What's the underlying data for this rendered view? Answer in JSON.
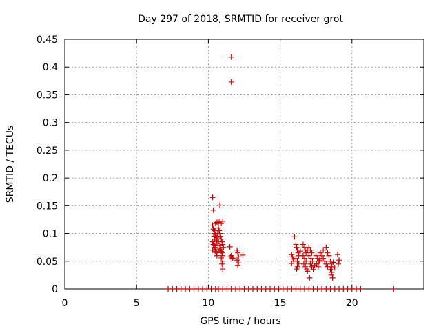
{
  "chart_data": {
    "type": "scatter",
    "title": "Day 297 of 2018, SRMTID for receiver grot",
    "xlabel": "GPS time / hours",
    "ylabel": "SRMTID / TECUs",
    "xlim": [
      0,
      25
    ],
    "ylim": [
      0,
      0.45
    ],
    "xticks": [
      "0",
      "5",
      "10",
      "15",
      "20"
    ],
    "yticks": [
      "0",
      "0.05",
      "0.1",
      "0.15",
      "0.2",
      "0.25",
      "0.3",
      "0.35",
      "0.4",
      "0.45"
    ],
    "grid": true,
    "marker": "plus",
    "color": "#cc0000",
    "series": [
      {
        "points": [
          [
            10.3,
            0.165
          ],
          [
            10.35,
            0.142
          ],
          [
            11.6,
            0.418
          ],
          [
            11.6,
            0.373
          ],
          [
            10.8,
            0.151
          ],
          [
            10.3,
            0.115
          ],
          [
            10.35,
            0.108
          ],
          [
            10.4,
            0.1
          ],
          [
            10.4,
            0.095
          ],
          [
            10.45,
            0.09
          ],
          [
            10.3,
            0.085
          ],
          [
            10.35,
            0.08
          ],
          [
            10.4,
            0.078
          ],
          [
            10.45,
            0.075
          ],
          [
            10.5,
            0.072
          ],
          [
            10.3,
            0.07
          ],
          [
            10.5,
            0.068
          ],
          [
            10.55,
            0.065
          ],
          [
            10.6,
            0.06
          ],
          [
            10.6,
            0.12
          ],
          [
            10.5,
            0.118
          ],
          [
            10.7,
            0.12
          ],
          [
            10.8,
            0.122
          ],
          [
            10.9,
            0.118
          ],
          [
            11.0,
            0.122
          ],
          [
            10.7,
            0.11
          ],
          [
            10.75,
            0.105
          ],
          [
            10.8,
            0.1
          ],
          [
            10.85,
            0.095
          ],
          [
            10.9,
            0.09
          ],
          [
            10.95,
            0.085
          ],
          [
            11.0,
            0.08
          ],
          [
            10.8,
            0.078
          ],
          [
            10.85,
            0.072
          ],
          [
            10.9,
            0.068
          ],
          [
            10.95,
            0.065
          ],
          [
            11.0,
            0.06
          ],
          [
            10.9,
            0.056
          ],
          [
            11.0,
            0.05
          ],
          [
            10.95,
            0.045
          ],
          [
            11.0,
            0.036
          ],
          [
            11.05,
            0.075
          ],
          [
            10.6,
            0.092
          ],
          [
            10.55,
            0.088
          ],
          [
            10.65,
            0.1
          ],
          [
            10.45,
            0.105
          ],
          [
            10.5,
            0.097
          ],
          [
            10.6,
            0.082
          ],
          [
            10.7,
            0.085
          ],
          [
            10.75,
            0.07
          ],
          [
            11.5,
            0.076
          ],
          [
            11.55,
            0.058
          ],
          [
            11.65,
            0.056
          ],
          [
            11.7,
            0.055
          ],
          [
            11.6,
            0.06
          ],
          [
            12.0,
            0.07
          ],
          [
            12.05,
            0.065
          ],
          [
            12.1,
            0.058
          ],
          [
            12.0,
            0.052
          ],
          [
            12.1,
            0.047
          ],
          [
            12.05,
            0.042
          ],
          [
            12.4,
            0.061
          ],
          [
            15.8,
            0.062
          ],
          [
            15.85,
            0.058
          ],
          [
            15.9,
            0.054
          ],
          [
            15.95,
            0.05
          ],
          [
            15.8,
            0.046
          ],
          [
            16.0,
            0.094
          ],
          [
            16.1,
            0.08
          ],
          [
            16.15,
            0.075
          ],
          [
            16.2,
            0.07
          ],
          [
            16.25,
            0.065
          ],
          [
            16.3,
            0.06
          ],
          [
            16.1,
            0.055
          ],
          [
            16.2,
            0.05
          ],
          [
            16.3,
            0.046
          ],
          [
            16.2,
            0.04
          ],
          [
            16.15,
            0.036
          ],
          [
            16.6,
            0.08
          ],
          [
            16.7,
            0.075
          ],
          [
            16.75,
            0.07
          ],
          [
            16.8,
            0.065
          ],
          [
            16.6,
            0.06
          ],
          [
            16.7,
            0.055
          ],
          [
            16.8,
            0.05
          ],
          [
            16.65,
            0.045
          ],
          [
            16.75,
            0.04
          ],
          [
            16.85,
            0.036
          ],
          [
            16.9,
            0.032
          ],
          [
            17.0,
            0.075
          ],
          [
            17.1,
            0.07
          ],
          [
            17.2,
            0.065
          ],
          [
            17.0,
            0.06
          ],
          [
            17.15,
            0.055
          ],
          [
            17.25,
            0.05
          ],
          [
            17.1,
            0.045
          ],
          [
            17.2,
            0.04
          ],
          [
            17.3,
            0.035
          ],
          [
            17.05,
            0.02
          ],
          [
            17.5,
            0.06
          ],
          [
            17.6,
            0.055
          ],
          [
            17.7,
            0.05
          ],
          [
            17.55,
            0.045
          ],
          [
            17.65,
            0.04
          ],
          [
            17.8,
            0.065
          ],
          [
            17.9,
            0.06
          ],
          [
            18.0,
            0.055
          ],
          [
            18.1,
            0.05
          ],
          [
            18.2,
            0.075
          ],
          [
            18.0,
            0.07
          ],
          [
            18.3,
            0.065
          ],
          [
            18.4,
            0.06
          ],
          [
            18.2,
            0.045
          ],
          [
            18.3,
            0.04
          ],
          [
            18.5,
            0.05
          ],
          [
            18.55,
            0.045
          ],
          [
            18.6,
            0.04
          ],
          [
            18.5,
            0.035
          ],
          [
            18.6,
            0.03
          ],
          [
            18.55,
            0.025
          ],
          [
            18.65,
            0.02
          ],
          [
            18.7,
            0.048
          ],
          [
            19.0,
            0.062
          ],
          [
            19.1,
            0.052
          ],
          [
            19.05,
            0.045
          ],
          [
            16.9,
            0.07
          ],
          [
            17.4,
            0.042
          ],
          [
            18.8,
            0.038
          ],
          [
            16.4,
            0.068
          ],
          [
            17.75,
            0.052
          ],
          [
            7.2,
            0
          ],
          [
            7.5,
            0
          ],
          [
            7.8,
            0
          ],
          [
            8.1,
            0
          ],
          [
            8.4,
            0
          ],
          [
            8.7,
            0
          ],
          [
            9.0,
            0
          ],
          [
            9.3,
            0
          ],
          [
            9.6,
            0
          ],
          [
            9.9,
            0
          ],
          [
            10.2,
            0
          ],
          [
            10.5,
            0
          ],
          [
            10.7,
            0
          ],
          [
            11.0,
            0
          ],
          [
            11.3,
            0
          ],
          [
            11.6,
            0
          ],
          [
            11.9,
            0
          ],
          [
            12.2,
            0
          ],
          [
            12.5,
            0
          ],
          [
            12.8,
            0
          ],
          [
            13.1,
            0
          ],
          [
            13.4,
            0
          ],
          [
            13.7,
            0
          ],
          [
            14.0,
            0
          ],
          [
            14.3,
            0
          ],
          [
            14.6,
            0
          ],
          [
            14.9,
            0
          ],
          [
            15.2,
            0
          ],
          [
            15.5,
            0
          ],
          [
            15.8,
            0
          ],
          [
            16.1,
            0
          ],
          [
            16.4,
            0
          ],
          [
            16.7,
            0
          ],
          [
            17.0,
            0
          ],
          [
            17.3,
            0
          ],
          [
            17.6,
            0
          ],
          [
            17.9,
            0
          ],
          [
            18.2,
            0
          ],
          [
            18.5,
            0
          ],
          [
            18.8,
            0
          ],
          [
            19.1,
            0
          ],
          [
            19.4,
            0
          ],
          [
            19.7,
            0
          ],
          [
            20.0,
            0
          ],
          [
            20.3,
            0
          ],
          [
            20.6,
            0
          ],
          [
            22.9,
            0
          ]
        ]
      }
    ]
  }
}
